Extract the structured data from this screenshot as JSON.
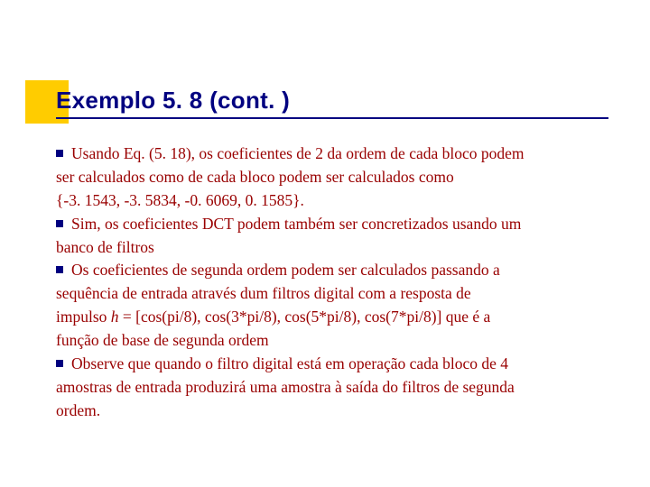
{
  "accent": {
    "color": "#ffcc00"
  },
  "title": {
    "text": "Exemplo 5. 8 (cont. )",
    "color": "#000080",
    "underline_color": "#000080",
    "fontsize": 26
  },
  "text_color": "#990000",
  "bullet_color": "#000080",
  "fontsize": 17.5,
  "bullets": [
    {
      "first": " Usando Eq. (5. 18), os coeficientes de 2 da ordem de cada bloco podem",
      "cont": "ser calculados como de cada bloco podem ser calculados como",
      "indent": "{-3. 1543, -3. 5834, -0. 6069, 0. 1585}."
    },
    {
      "first": " Sim, os coeficientes DCT podem também ser concretizados usando um",
      "cont": "banco de filtros"
    },
    {
      "first": "Os coeficientes de segunda ordem podem ser calculados passando a",
      "cont1": "sequência de entrada através dum filtros digital com a resposta de",
      "cont2_pre": "impulso ",
      "cont2_ital": "h",
      "cont2_post": " = [cos(pi/8),  cos(3*pi/8), cos(5*pi/8), cos(7*pi/8)]  que é a",
      "cont3": "função de base de segunda ordem"
    },
    {
      "first": " Observe que quando o filtro digital está em operação cada bloco de 4",
      "cont1": "amostras de entrada produzirá uma amostra à saída do filtros de segunda",
      "cont2": "ordem."
    }
  ]
}
